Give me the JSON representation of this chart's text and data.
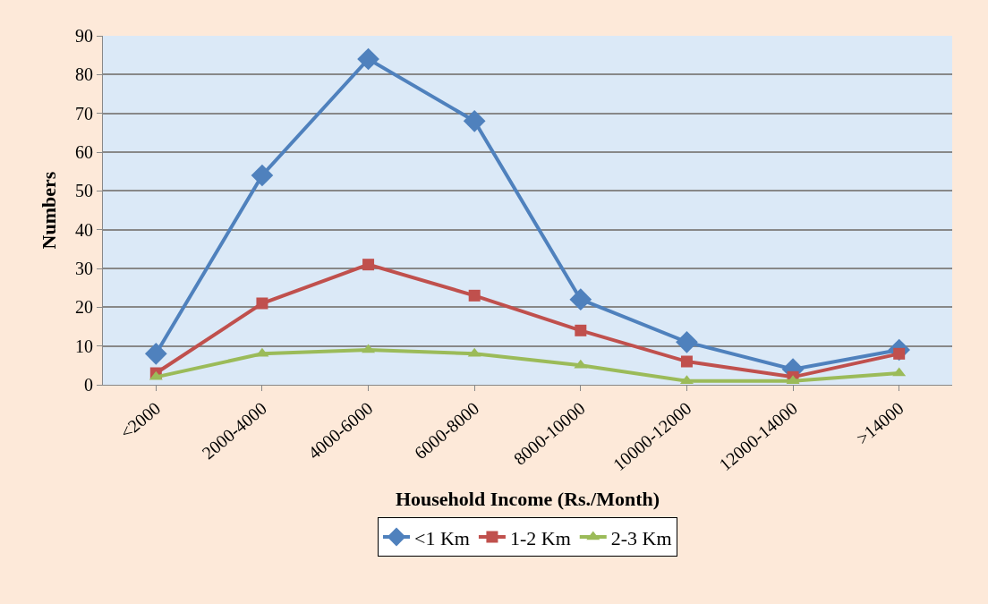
{
  "chart_data": {
    "type": "line",
    "xlabel": "Household Income (Rs./Month)",
    "ylabel": "Numbers",
    "categories": [
      "<2000",
      "2000-4000",
      "4000-6000",
      "6000-8000",
      "8000-10000",
      "10000-12000",
      "12000-14000",
      ">14000"
    ],
    "series": [
      {
        "name": "<1 Km",
        "color": "#4f81bd",
        "marker": "diamond",
        "values": [
          8,
          54,
          84,
          68,
          22,
          11,
          4,
          9
        ]
      },
      {
        "name": "1-2 Km",
        "color": "#c0504d",
        "marker": "square",
        "values": [
          3,
          21,
          31,
          23,
          14,
          6,
          2,
          8
        ]
      },
      {
        "name": "2-3 Km",
        "color": "#9bbb59",
        "marker": "triangle",
        "values": [
          2,
          8,
          9,
          8,
          5,
          1,
          1,
          3
        ]
      }
    ],
    "ylim": [
      0,
      90
    ],
    "yticks": [
      0,
      10,
      20,
      30,
      40,
      50,
      60,
      70,
      80,
      90
    ],
    "grid": "y",
    "legend": "bottom",
    "line_style": "solid"
  }
}
